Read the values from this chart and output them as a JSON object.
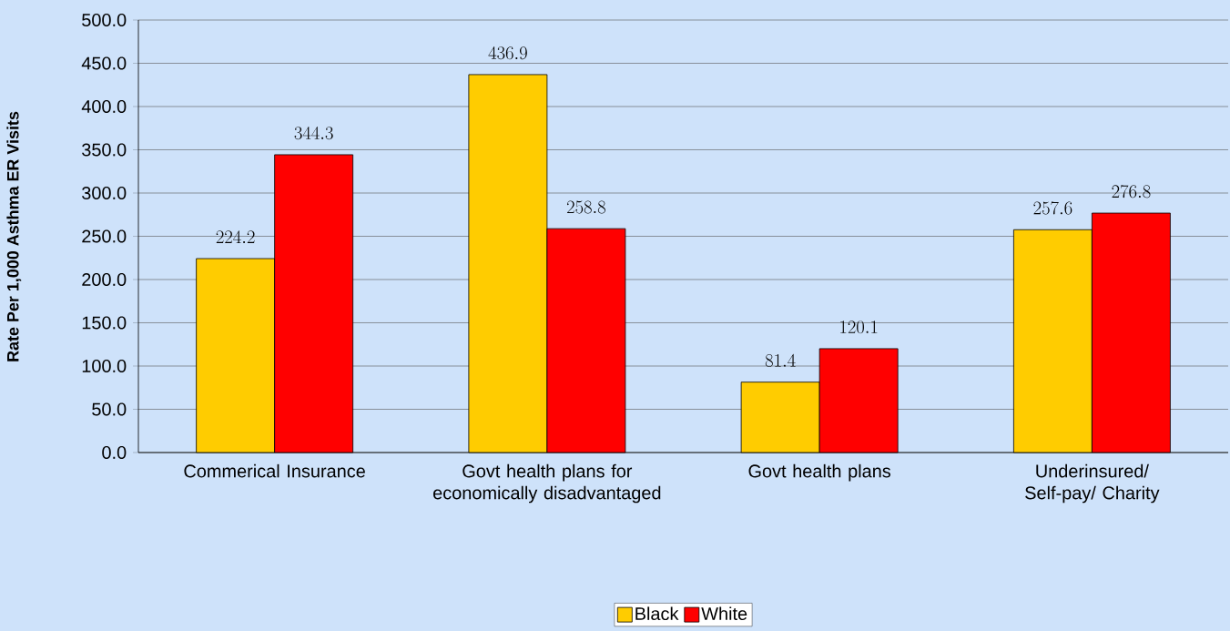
{
  "chart_data": {
    "type": "bar",
    "ylabel": "Rate Per 1,000 Asthma ER Visits",
    "categories": [
      "Commerical Insurance",
      "Govt health plans for economically disadvantaged",
      "Govt health plans",
      "Underinsured/ Self-pay/ Charity"
    ],
    "series": [
      {
        "name": "Black",
        "color": "#ffcc00",
        "values": [
          224.2,
          436.9,
          81.4,
          257.6
        ]
      },
      {
        "name": "White",
        "color": "#ff0000",
        "values": [
          344.3,
          258.8,
          120.1,
          276.8
        ]
      }
    ],
    "ylim": [
      0,
      500
    ],
    "yticks": [
      {
        "value": 0,
        "label": "0.0"
      },
      {
        "value": 50,
        "label": "50.0"
      },
      {
        "value": 100,
        "label": "100.0"
      },
      {
        "value": 150,
        "label": "150.0"
      },
      {
        "value": 200,
        "label": "200.0"
      },
      {
        "value": 250,
        "label": "250.0"
      },
      {
        "value": 300,
        "label": "300.0"
      },
      {
        "value": 350,
        "label": "350.0"
      },
      {
        "value": 400,
        "label": "400.0"
      },
      {
        "value": 450,
        "label": "450.0"
      },
      {
        "value": 500,
        "label": "500.0"
      }
    ],
    "grid": "y",
    "legend": "bottom",
    "data_labels": true
  }
}
